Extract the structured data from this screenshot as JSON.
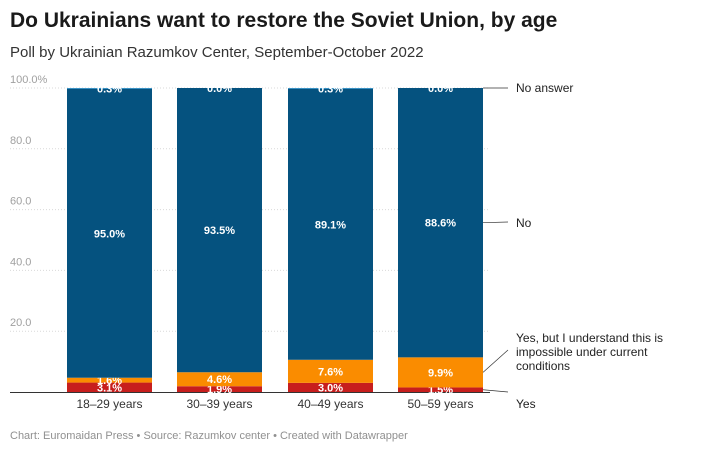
{
  "title": "Do Ukrainians want to restore the Soviet Union, by age",
  "subtitle": "Poll by Ukrainian Razumkov Center, September-October 2022",
  "footer": "Chart: Euromaidan Press • Source: Razumkov center • Created with Datawrapper",
  "colors": {
    "yes": "#c71e1d",
    "yes_but": "#fa8c00",
    "no": "#05527f",
    "no_answer": "#2c8ac1",
    "grid": "#d9d9d9",
    "axis_text": "#a0a0a0"
  },
  "chart_data": {
    "type": "bar",
    "stacked": true,
    "categories": [
      "18–29 years",
      "30–39 years",
      "40–49 years",
      "50–59 years"
    ],
    "series": [
      {
        "name": "Yes",
        "color": "#c71e1d",
        "values": [
          3.1,
          1.9,
          3.0,
          1.5
        ],
        "labels": [
          "3.1%",
          "1.9%",
          "3.0%",
          "1.5%"
        ]
      },
      {
        "name": "Yes, but I understand this is impossible under current conditions",
        "color": "#fa8c00",
        "values": [
          1.6,
          4.6,
          7.6,
          9.9
        ],
        "labels": [
          "1.6%",
          "4.6%",
          "7.6%",
          "9.9%"
        ]
      },
      {
        "name": "No",
        "color": "#05527f",
        "values": [
          95.0,
          93.5,
          89.1,
          88.6
        ],
        "labels": [
          "95.0%",
          "93.5%",
          "89.1%",
          "88.6%"
        ]
      },
      {
        "name": "No answer",
        "color": "#2c8ac1",
        "values": [
          0.3,
          0.0,
          0.3,
          0.0
        ],
        "labels": [
          "0.3%",
          "0.0%",
          "0.3%",
          "0.0%"
        ]
      }
    ],
    "y_ticks": [
      "100.0%",
      "80.0",
      "60.0",
      "40.0",
      "20.0"
    ],
    "y_tick_values": [
      100,
      80,
      60,
      40,
      20
    ],
    "ylim": [
      0,
      100
    ],
    "legend_placement": "right, inline labels",
    "grid": true
  }
}
